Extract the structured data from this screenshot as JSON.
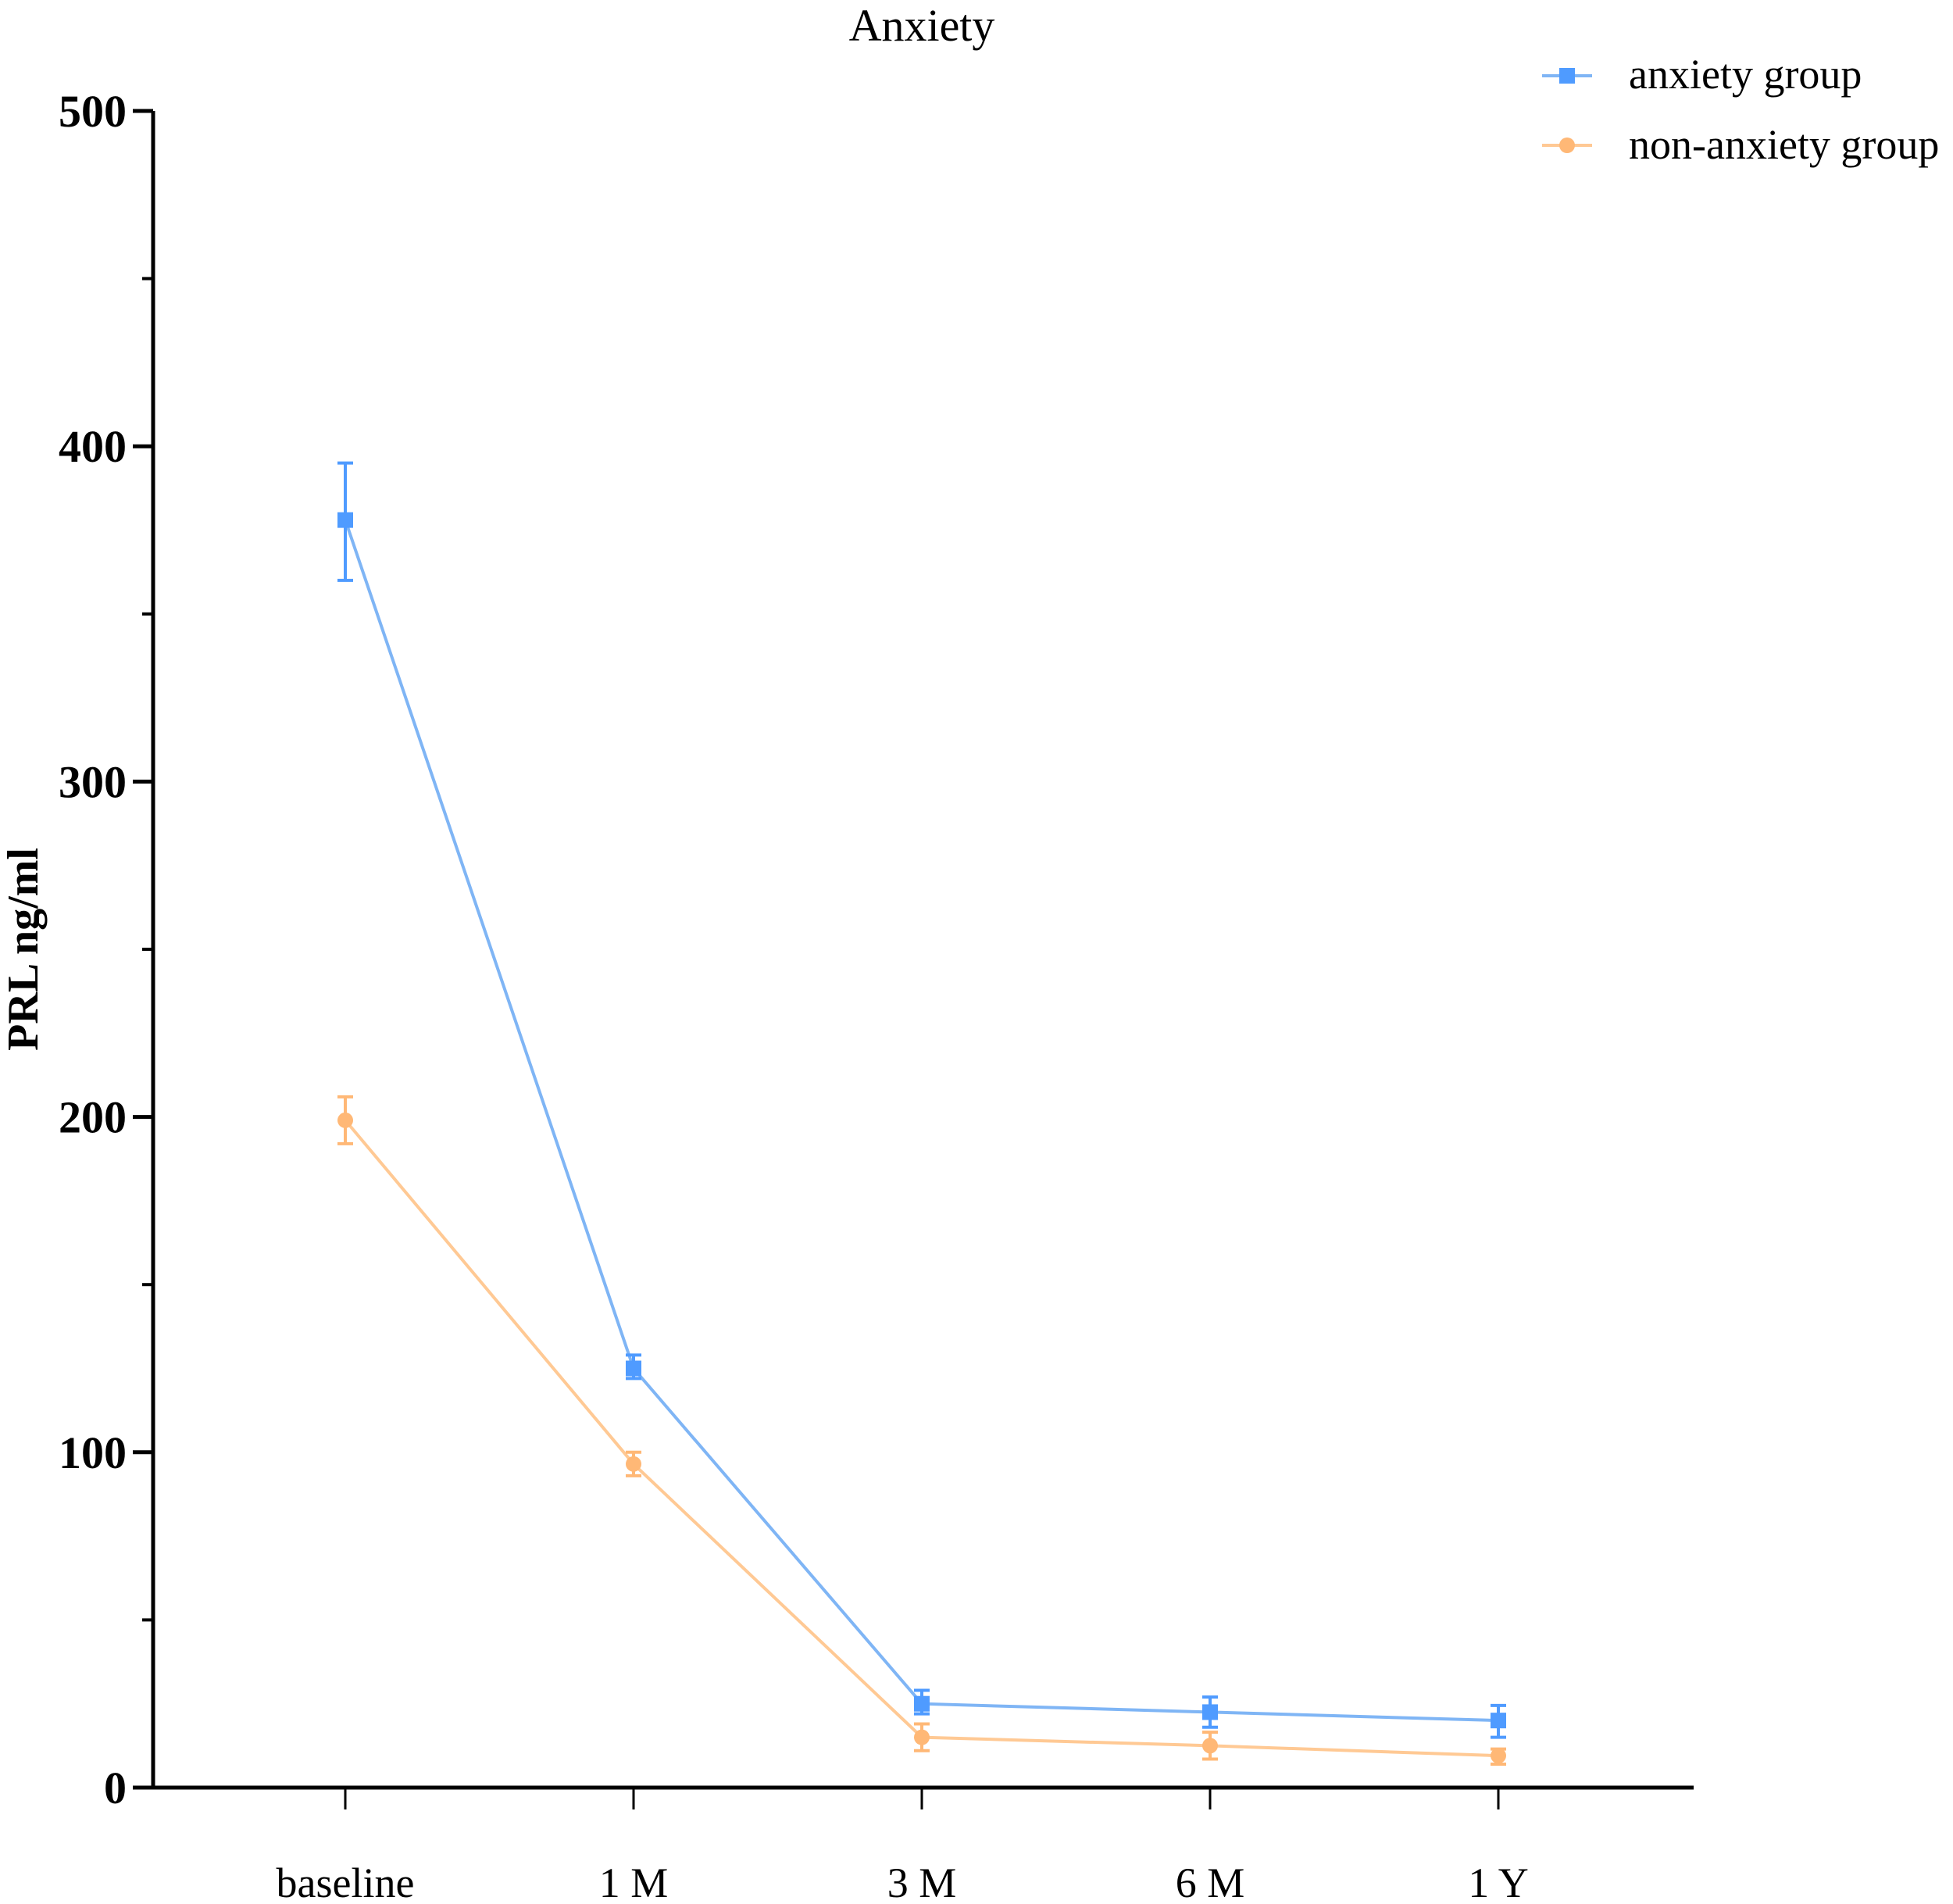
{
  "chart_data": {
    "type": "line",
    "title": "Anxiety",
    "xlabel": "",
    "ylabel": "PRL ng/ml",
    "categories": [
      "baseline",
      "1 M",
      "3 M",
      "6 M",
      "1 Y"
    ],
    "ylim": [
      0,
      500
    ],
    "yticks": [
      0,
      100,
      200,
      300,
      400,
      500
    ],
    "y_minor_ticks": [
      50,
      150,
      250,
      350,
      450
    ],
    "grid": false,
    "legend_position": "top-right",
    "error_bars": true,
    "series": [
      {
        "name": "anxiety group",
        "marker": "square",
        "color": "#4f9bff",
        "line_color": "#7fb5f5",
        "values": [
          378,
          125,
          25,
          22.5,
          20
        ],
        "error_low": [
          360,
          122,
          22,
          18,
          15
        ],
        "error_high": [
          395,
          129,
          29,
          27,
          24.5
        ]
      },
      {
        "name": "non-anxiety group",
        "marker": "circle",
        "color": "#ffb876",
        "line_color": "#ffc994",
        "values": [
          199,
          96.5,
          15,
          12.5,
          9.5
        ],
        "error_low": [
          192,
          93,
          11,
          8.5,
          7
        ],
        "error_high": [
          206,
          100,
          19,
          16.5,
          11.5
        ]
      }
    ]
  },
  "title": "Anxiety",
  "ylabel": "PRL ng/ml",
  "yticks": [
    "0",
    "100",
    "200",
    "300",
    "400",
    "500"
  ],
  "xticks": [
    "baseline",
    "1 M",
    "3 M",
    "6 M",
    "1 Y"
  ],
  "legend": [
    {
      "label": "anxiety group",
      "icon": "square-marker-icon"
    },
    {
      "label": "non-anxiety group",
      "icon": "circle-marker-icon"
    }
  ]
}
